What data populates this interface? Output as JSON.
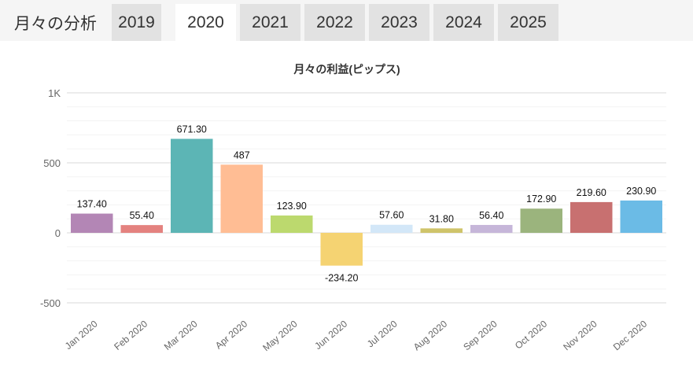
{
  "header": {
    "title": "月々の分析",
    "tabs": [
      "2019",
      "2020",
      "2021",
      "2022",
      "2023",
      "2024",
      "2025"
    ],
    "active_tab": "2020"
  },
  "chart_data": {
    "type": "bar",
    "title": "月々の利益(ピップス)",
    "categories": [
      "Jan 2020",
      "Feb 2020",
      "Mar 2020",
      "Apr 2020",
      "May 2020",
      "Jun 2020",
      "Jul 2020",
      "Aug 2020",
      "Sep 2020",
      "Oct 2020",
      "Nov 2020",
      "Dec 2020"
    ],
    "values": [
      137.4,
      55.4,
      671.3,
      487,
      123.9,
      -234.2,
      57.6,
      31.8,
      56.4,
      172.9,
      219.6,
      230.9
    ],
    "labels": [
      "137.40",
      "55.40",
      "671.30",
      "487",
      "123.90",
      "-234.20",
      "57.60",
      "31.80",
      "56.40",
      "172.90",
      "219.60",
      "230.90"
    ],
    "colors": [
      "#b386b5",
      "#e4827f",
      "#5cb5b5",
      "#ffbd94",
      "#bcd96e",
      "#f5d372",
      "#d3e7f8",
      "#cfc46a",
      "#c6b6d9",
      "#9bb47d",
      "#c87070",
      "#6bbbe6"
    ],
    "yticks": [
      {
        "v": 1000,
        "label": "1K"
      },
      {
        "v": 500,
        "label": "500"
      },
      {
        "v": 0,
        "label": "0"
      },
      {
        "v": -500,
        "label": "-500"
      }
    ],
    "ylim": [
      -500,
      1000
    ],
    "grid": true,
    "xlabel": "",
    "ylabel": ""
  }
}
